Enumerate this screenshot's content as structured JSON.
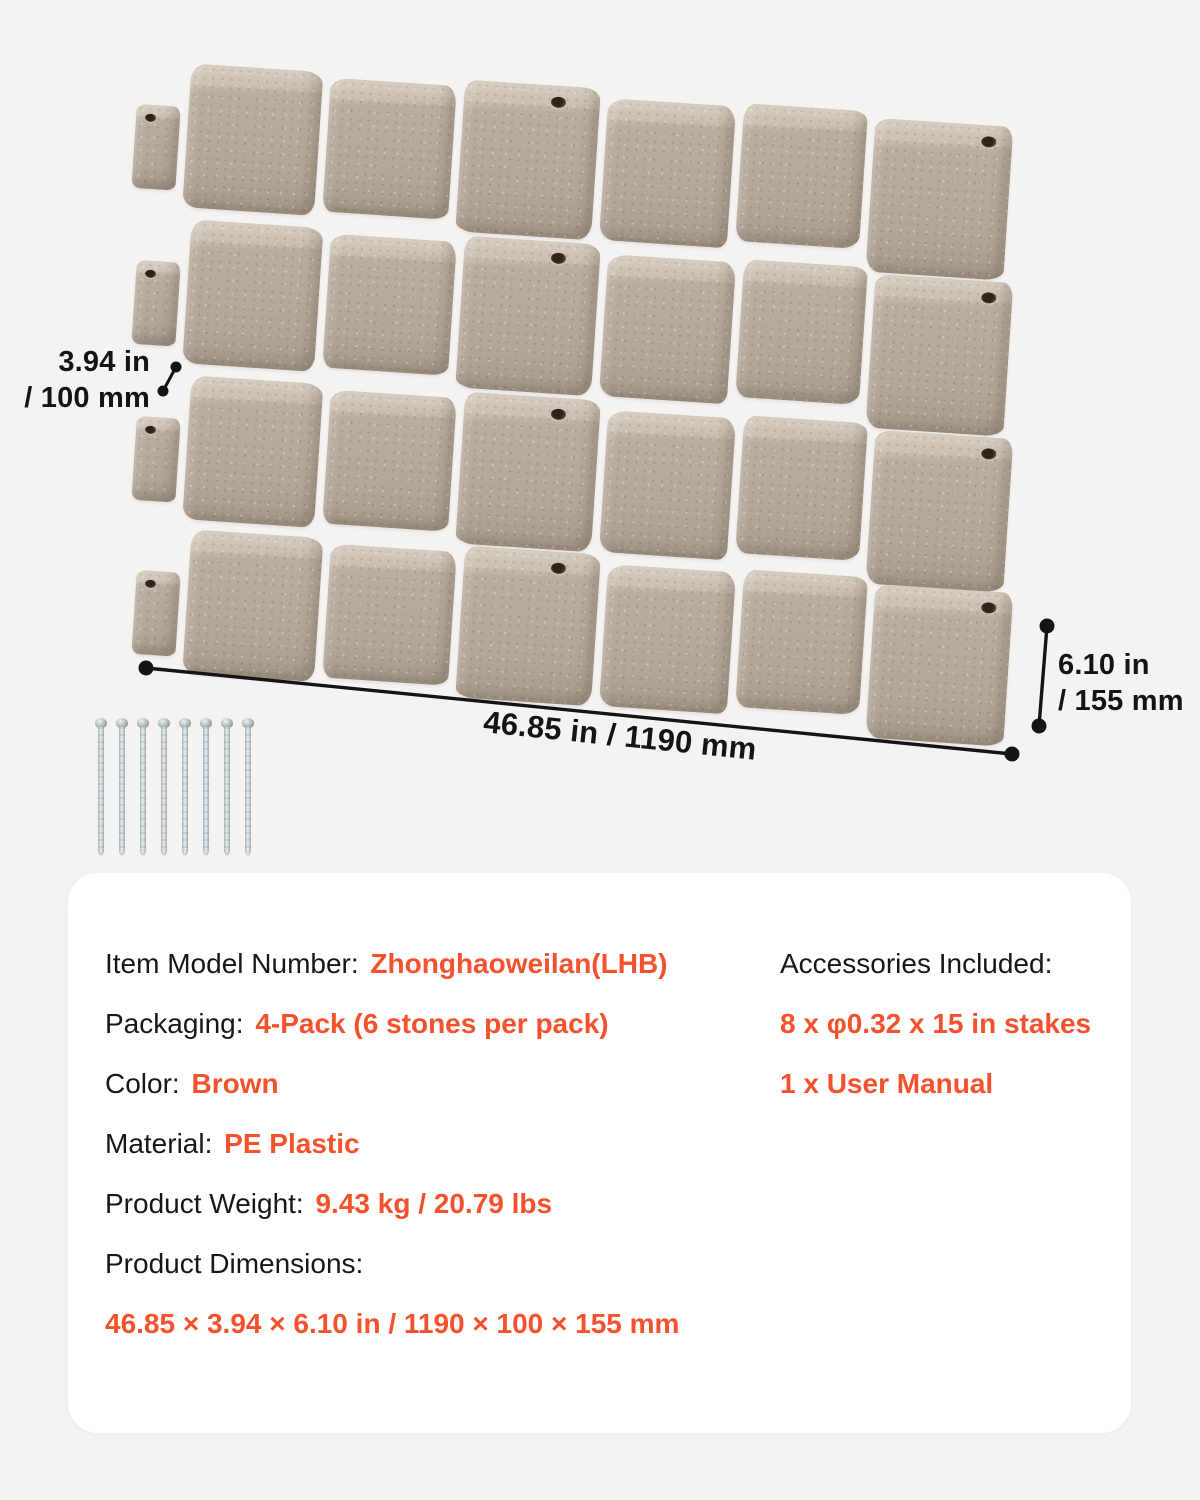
{
  "page": {
    "background": "#f4f3f1",
    "accent": "#f4512c",
    "text_color": "#17171a",
    "card_background": "#ffffff"
  },
  "diagram": {
    "rows": 4,
    "stones_per_row": 6,
    "stakes_count": 8,
    "stone_color": "#b6aa9b",
    "dim_left": {
      "line1": "3.94 in",
      "line2": "/ 100 mm"
    },
    "dim_right": {
      "line1": "6.10 in",
      "line2": "/ 155 mm"
    },
    "dim_bottom": "46.85 in / 1190 mm"
  },
  "specs": {
    "left": [
      {
        "label": "Item Model Number: ",
        "value": "Zhonghaoweilan(LHB)"
      },
      {
        "label": "Packaging: ",
        "value": "4-Pack (6 stones per pack)"
      },
      {
        "label": "Color: ",
        "value": "Brown"
      },
      {
        "label": "Material:  ",
        "value": "PE Plastic"
      },
      {
        "label": "Product Weight: ",
        "value": "9.43 kg / 20.79 lbs"
      },
      {
        "label": "Product Dimensions:",
        "value": ""
      },
      {
        "label": "",
        "value": "46.85 × 3.94 × 6.10 in / 1190 × 100 × 155 mm"
      }
    ],
    "right": [
      {
        "label": "Accessories Included:",
        "value": ""
      },
      {
        "label": "",
        "value": "8 x φ0.32 x 15 in stakes"
      },
      {
        "label": "",
        "value": "1 x User Manual"
      }
    ]
  }
}
